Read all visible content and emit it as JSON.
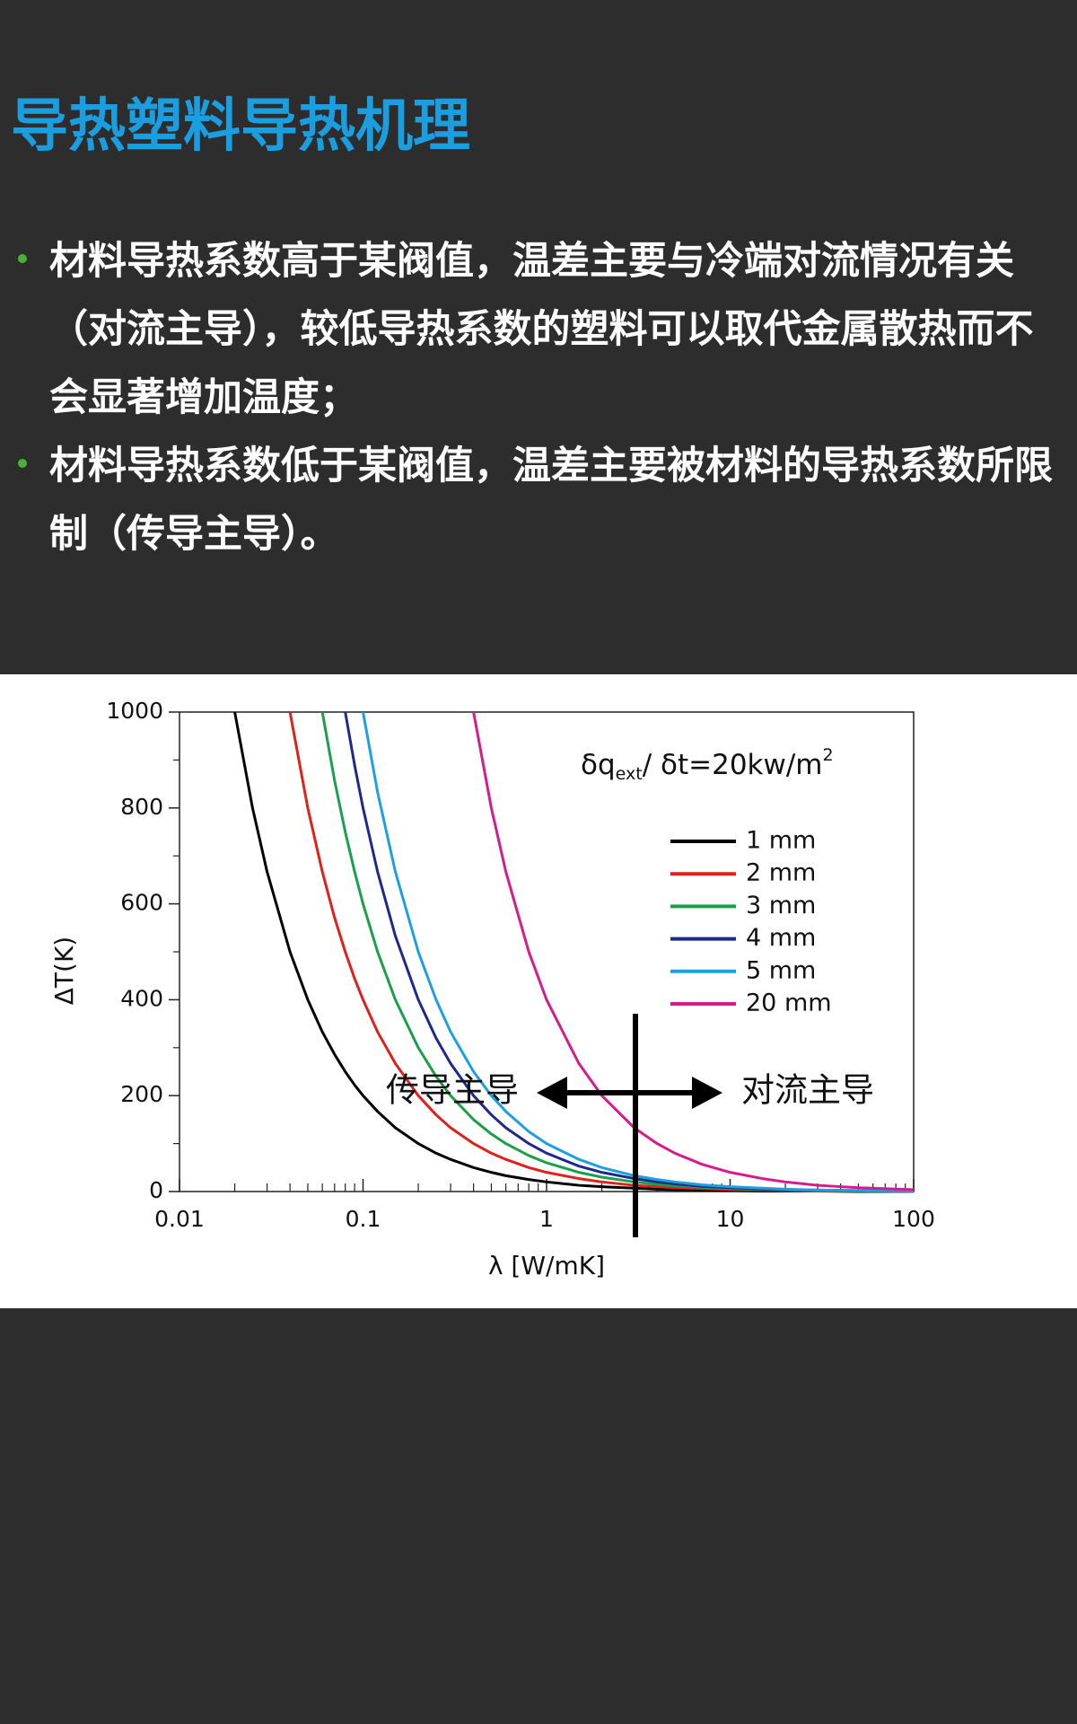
{
  "header": {
    "title": "导热塑料导热机理"
  },
  "bullets": [
    [
      "材料导热系数高于某阀值，温差主要与冷端对流情况有关",
      "（对流主导），较低导热系数的塑料可以取代金属散热而不",
      "会显著增加温度；"
    ],
    [
      "材料导热系数低于某阀值，温差主要被材料的导热系数所限",
      "制（传导主导）。"
    ]
  ],
  "chart_data": {
    "type": "line",
    "log_x": true,
    "xlabel": "λ [W/mK]",
    "ylabel": "ΔT(K)",
    "annotation": [
      "δq",
      "ext",
      "/ δt=20kw/m",
      "2"
    ],
    "region_labels": [
      "传导主导",
      "对流主导"
    ],
    "xlim": [
      0.01,
      100
    ],
    "ylim": [
      0,
      1000
    ],
    "xticks": [
      0.01,
      0.1,
      1,
      10,
      100
    ],
    "xminor": [
      0.02,
      0.03,
      0.04,
      0.05,
      0.06,
      0.07,
      0.08,
      0.09,
      0.2,
      0.3,
      0.4,
      0.5,
      0.6,
      0.7,
      0.8,
      0.9,
      2,
      3,
      4,
      5,
      6,
      7,
      8,
      9,
      20,
      30,
      40,
      50,
      60,
      70,
      80,
      90
    ],
    "yticks": [
      0,
      200,
      400,
      600,
      800,
      1000
    ],
    "yminor": [
      100,
      300,
      500,
      700,
      900
    ],
    "x": [
      0.02,
      0.025,
      0.03,
      0.04,
      0.05,
      0.06,
      0.07,
      0.08,
      0.09,
      0.1,
      0.12,
      0.15,
      0.2,
      0.25,
      0.3,
      0.4,
      0.5,
      0.6,
      0.8,
      1,
      1.5,
      2,
      3,
      4,
      5,
      7,
      10,
      15,
      20,
      30,
      50,
      100
    ],
    "series": [
      {
        "name": "1 mm",
        "color": "#000000",
        "values": [
          1000,
          800,
          667,
          500,
          400,
          333,
          286,
          250,
          222,
          200,
          167,
          133,
          100,
          80,
          67,
          50,
          40,
          33,
          25,
          20,
          13,
          10,
          7,
          5,
          4,
          3,
          2,
          1,
          1,
          1,
          0,
          0
        ]
      },
      {
        "name": "2 mm",
        "color": "#e0201b",
        "values": [
          null,
          null,
          null,
          1000,
          800,
          667,
          571,
          500,
          444,
          400,
          333,
          267,
          200,
          160,
          133,
          100,
          80,
          67,
          50,
          40,
          27,
          20,
          13,
          10,
          8,
          6,
          4,
          3,
          2,
          1,
          1,
          0
        ]
      },
      {
        "name": "3 mm",
        "color": "#1aa04a",
        "values": [
          null,
          null,
          null,
          null,
          null,
          1000,
          857,
          750,
          667,
          600,
          500,
          400,
          300,
          240,
          200,
          150,
          120,
          100,
          75,
          60,
          40,
          30,
          20,
          15,
          12,
          9,
          6,
          4,
          3,
          2,
          1,
          1
        ]
      },
      {
        "name": "4 mm",
        "color": "#1e2a8a",
        "values": [
          null,
          null,
          null,
          null,
          null,
          null,
          null,
          1000,
          889,
          800,
          667,
          533,
          400,
          320,
          267,
          200,
          160,
          133,
          100,
          80,
          53,
          40,
          27,
          20,
          16,
          11,
          8,
          5,
          4,
          3,
          2,
          1
        ]
      },
      {
        "name": "5 mm",
        "color": "#1ea0e0",
        "values": [
          null,
          null,
          null,
          null,
          null,
          null,
          null,
          null,
          null,
          1000,
          833,
          667,
          500,
          400,
          333,
          250,
          200,
          167,
          125,
          100,
          67,
          50,
          33,
          25,
          20,
          14,
          10,
          7,
          5,
          3,
          2,
          1
        ]
      },
      {
        "name": "20 mm",
        "color": "#d81b8c",
        "values": [
          null,
          null,
          null,
          null,
          null,
          null,
          null,
          null,
          null,
          null,
          null,
          null,
          null,
          null,
          null,
          1000,
          800,
          667,
          500,
          400,
          267,
          200,
          133,
          100,
          80,
          57,
          40,
          27,
          20,
          13,
          8,
          4
        ]
      }
    ]
  }
}
